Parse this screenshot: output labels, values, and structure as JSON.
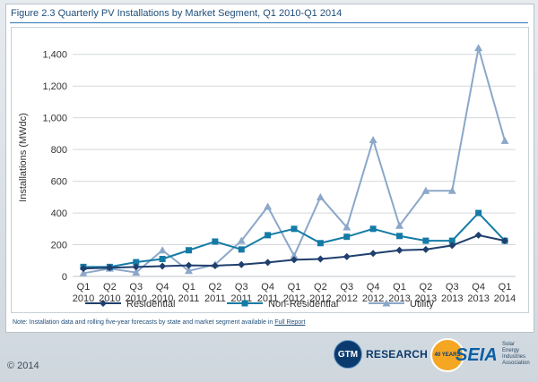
{
  "figure_title": "Figure 2.3  Quarterly PV Installations by Market Segment, Q1 2010-Q1 2014",
  "note": {
    "text": "Note: Installation data and rolling five-year forecasts by state and market segment available in ",
    "link": "Full Report"
  },
  "copyright": "© 2014",
  "logos": {
    "gtm_mark": "GTM",
    "gtm_text": "RESEARCH",
    "seia_badge": "40 YEARS",
    "seia_word": "SEIA",
    "seia_tagline": "Solar Energy Industries Association"
  },
  "chart_data": {
    "type": "line",
    "title": "",
    "xlabel": "",
    "ylabel": "Installations (MWdc)",
    "ylim": [
      0,
      1500
    ],
    "yticks": [
      0,
      200,
      400,
      600,
      800,
      1000,
      1200,
      1400
    ],
    "ytick_labels": [
      "0",
      "200",
      "400",
      "600",
      "800",
      "1,000",
      "1,200",
      "1,400"
    ],
    "categories": [
      [
        "Q1",
        "2010"
      ],
      [
        "Q2",
        "2010"
      ],
      [
        "Q3",
        "2010"
      ],
      [
        "Q4",
        "2010"
      ],
      [
        "Q1",
        "2011"
      ],
      [
        "Q2",
        "2011"
      ],
      [
        "Q3",
        "2011"
      ],
      [
        "Q4",
        "2011"
      ],
      [
        "Q1",
        "2012"
      ],
      [
        "Q2",
        "2012"
      ],
      [
        "Q3",
        "2012"
      ],
      [
        "Q4",
        "2012"
      ],
      [
        "Q1",
        "2013"
      ],
      [
        "Q2",
        "2013"
      ],
      [
        "Q3",
        "2013"
      ],
      [
        "Q4",
        "2013"
      ],
      [
        "Q1",
        "2014"
      ]
    ],
    "grid": "horizontal",
    "legend_position": "bottom",
    "series": [
      {
        "name": "Residential",
        "color": "#1f3f6e",
        "marker": "diamond",
        "values": [
          50,
          55,
          60,
          65,
          70,
          68,
          75,
          88,
          105,
          110,
          125,
          145,
          165,
          170,
          195,
          260,
          225
        ]
      },
      {
        "name": "Non-Residential",
        "color": "#157ba6",
        "marker": "square",
        "values": [
          60,
          60,
          90,
          110,
          165,
          220,
          170,
          260,
          300,
          210,
          250,
          300,
          255,
          225,
          225,
          400,
          225
        ]
      },
      {
        "name": "Utility",
        "color": "#8ba7c9",
        "marker": "triangle",
        "values": [
          20,
          50,
          25,
          165,
          35,
          75,
          225,
          440,
          130,
          500,
          310,
          860,
          320,
          540,
          540,
          1440,
          855
        ]
      }
    ]
  }
}
